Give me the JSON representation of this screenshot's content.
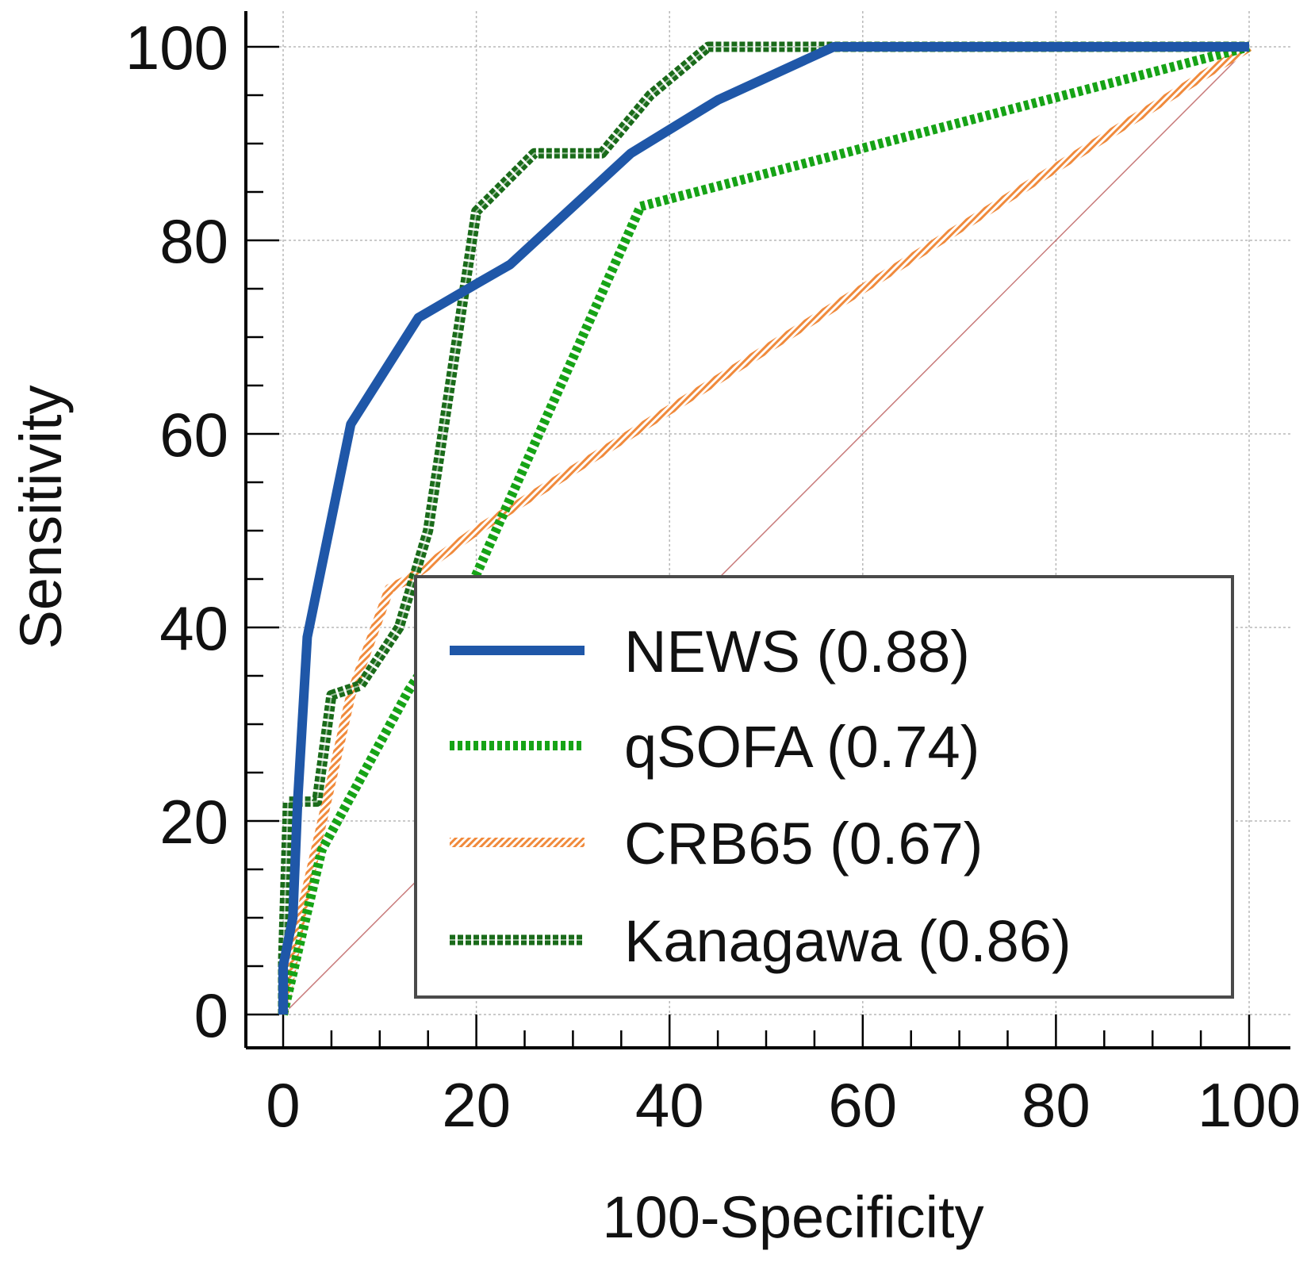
{
  "chart_data": {
    "type": "line",
    "xlabel": "100-Specificity",
    "ylabel": "Sensitivity",
    "xlim": [
      0,
      100
    ],
    "ylim": [
      0,
      100
    ],
    "xticks": [
      0,
      20,
      40,
      60,
      80,
      100
    ],
    "yticks": [
      0,
      20,
      40,
      60,
      80,
      100
    ],
    "grid": true,
    "legend_position": "bottom-right",
    "reference_line": {
      "points": [
        [
          0,
          0
        ],
        [
          100,
          100
        ]
      ],
      "color": "#c87a7a"
    },
    "series": [
      {
        "name": "NEWS (0.88)",
        "color": "#1f57a8",
        "style": "solid",
        "points": [
          [
            0,
            0
          ],
          [
            0,
            5
          ],
          [
            1,
            10
          ],
          [
            1.5,
            22
          ],
          [
            2.5,
            39
          ],
          [
            7,
            61
          ],
          [
            14,
            72
          ],
          [
            20,
            75.5
          ],
          [
            23.5,
            77.5
          ],
          [
            36,
            89
          ],
          [
            45,
            94.5
          ],
          [
            57,
            100
          ],
          [
            100,
            100
          ]
        ]
      },
      {
        "name": "qSOFA (0.74)",
        "color": "#16a316",
        "style": "dotted",
        "points": [
          [
            0,
            0
          ],
          [
            4,
            17
          ],
          [
            13,
            33.5
          ],
          [
            18,
            41
          ],
          [
            37,
            83.5
          ],
          [
            100,
            100
          ]
        ]
      },
      {
        "name": "CRB65 (0.67)",
        "color": "#f08a3c",
        "style": "hatched",
        "points": [
          [
            0,
            0
          ],
          [
            2,
            11
          ],
          [
            7,
            33
          ],
          [
            11,
            44
          ],
          [
            13,
            45
          ],
          [
            20,
            50
          ],
          [
            100,
            100
          ]
        ]
      },
      {
        "name": "Kanagawa (0.86)",
        "color": "#1a6b1a",
        "style": "dashed-thick",
        "points": [
          [
            0,
            0
          ],
          [
            0,
            5.5
          ],
          [
            0.5,
            22
          ],
          [
            3.5,
            22
          ],
          [
            5,
            33
          ],
          [
            8,
            34
          ],
          [
            12,
            40
          ],
          [
            15,
            50
          ],
          [
            20,
            83
          ],
          [
            26,
            89
          ],
          [
            33,
            89
          ],
          [
            38,
            95
          ],
          [
            44,
            100
          ],
          [
            100,
            100
          ]
        ]
      }
    ]
  }
}
